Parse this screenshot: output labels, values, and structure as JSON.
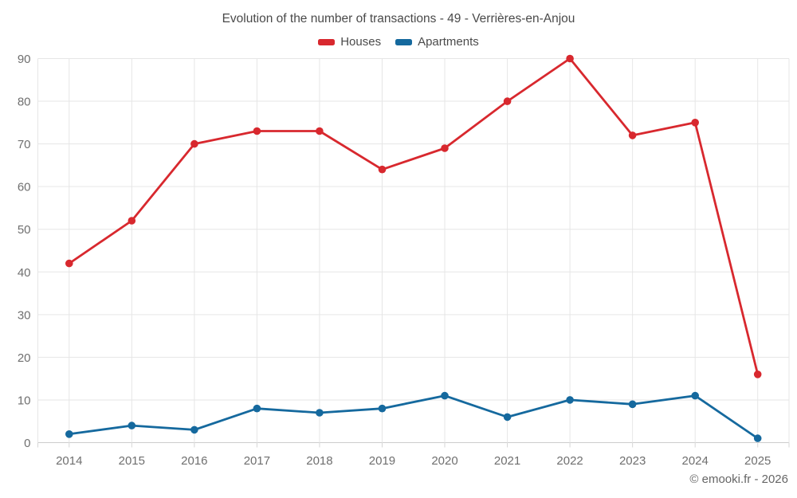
{
  "header": {
    "title": "Evolution of the number of transactions - 49 - Verrières-en-Anjou"
  },
  "footer": {
    "credit": "© emooki.fr - 2026"
  },
  "chart_data": {
    "type": "line",
    "title": "Evolution of the number of transactions - 49 - Verrières-en-Anjou",
    "categories": [
      "2014",
      "2015",
      "2016",
      "2017",
      "2018",
      "2019",
      "2020",
      "2021",
      "2022",
      "2023",
      "2024",
      "2025"
    ],
    "series": [
      {
        "name": "Houses",
        "color": "#d8282e",
        "values": [
          42,
          52,
          70,
          73,
          73,
          64,
          69,
          80,
          90,
          72,
          75,
          16
        ]
      },
      {
        "name": "Apartments",
        "color": "#15699e",
        "values": [
          2,
          4,
          3,
          8,
          7,
          8,
          11,
          6,
          10,
          9,
          11,
          1
        ]
      }
    ],
    "xlabel": "",
    "ylabel": "",
    "ylim": [
      0,
      90
    ],
    "yticks": [
      0,
      10,
      20,
      30,
      40,
      50,
      60,
      70,
      80,
      90
    ],
    "grid": true,
    "legend_position": "top",
    "marker": "circle"
  }
}
